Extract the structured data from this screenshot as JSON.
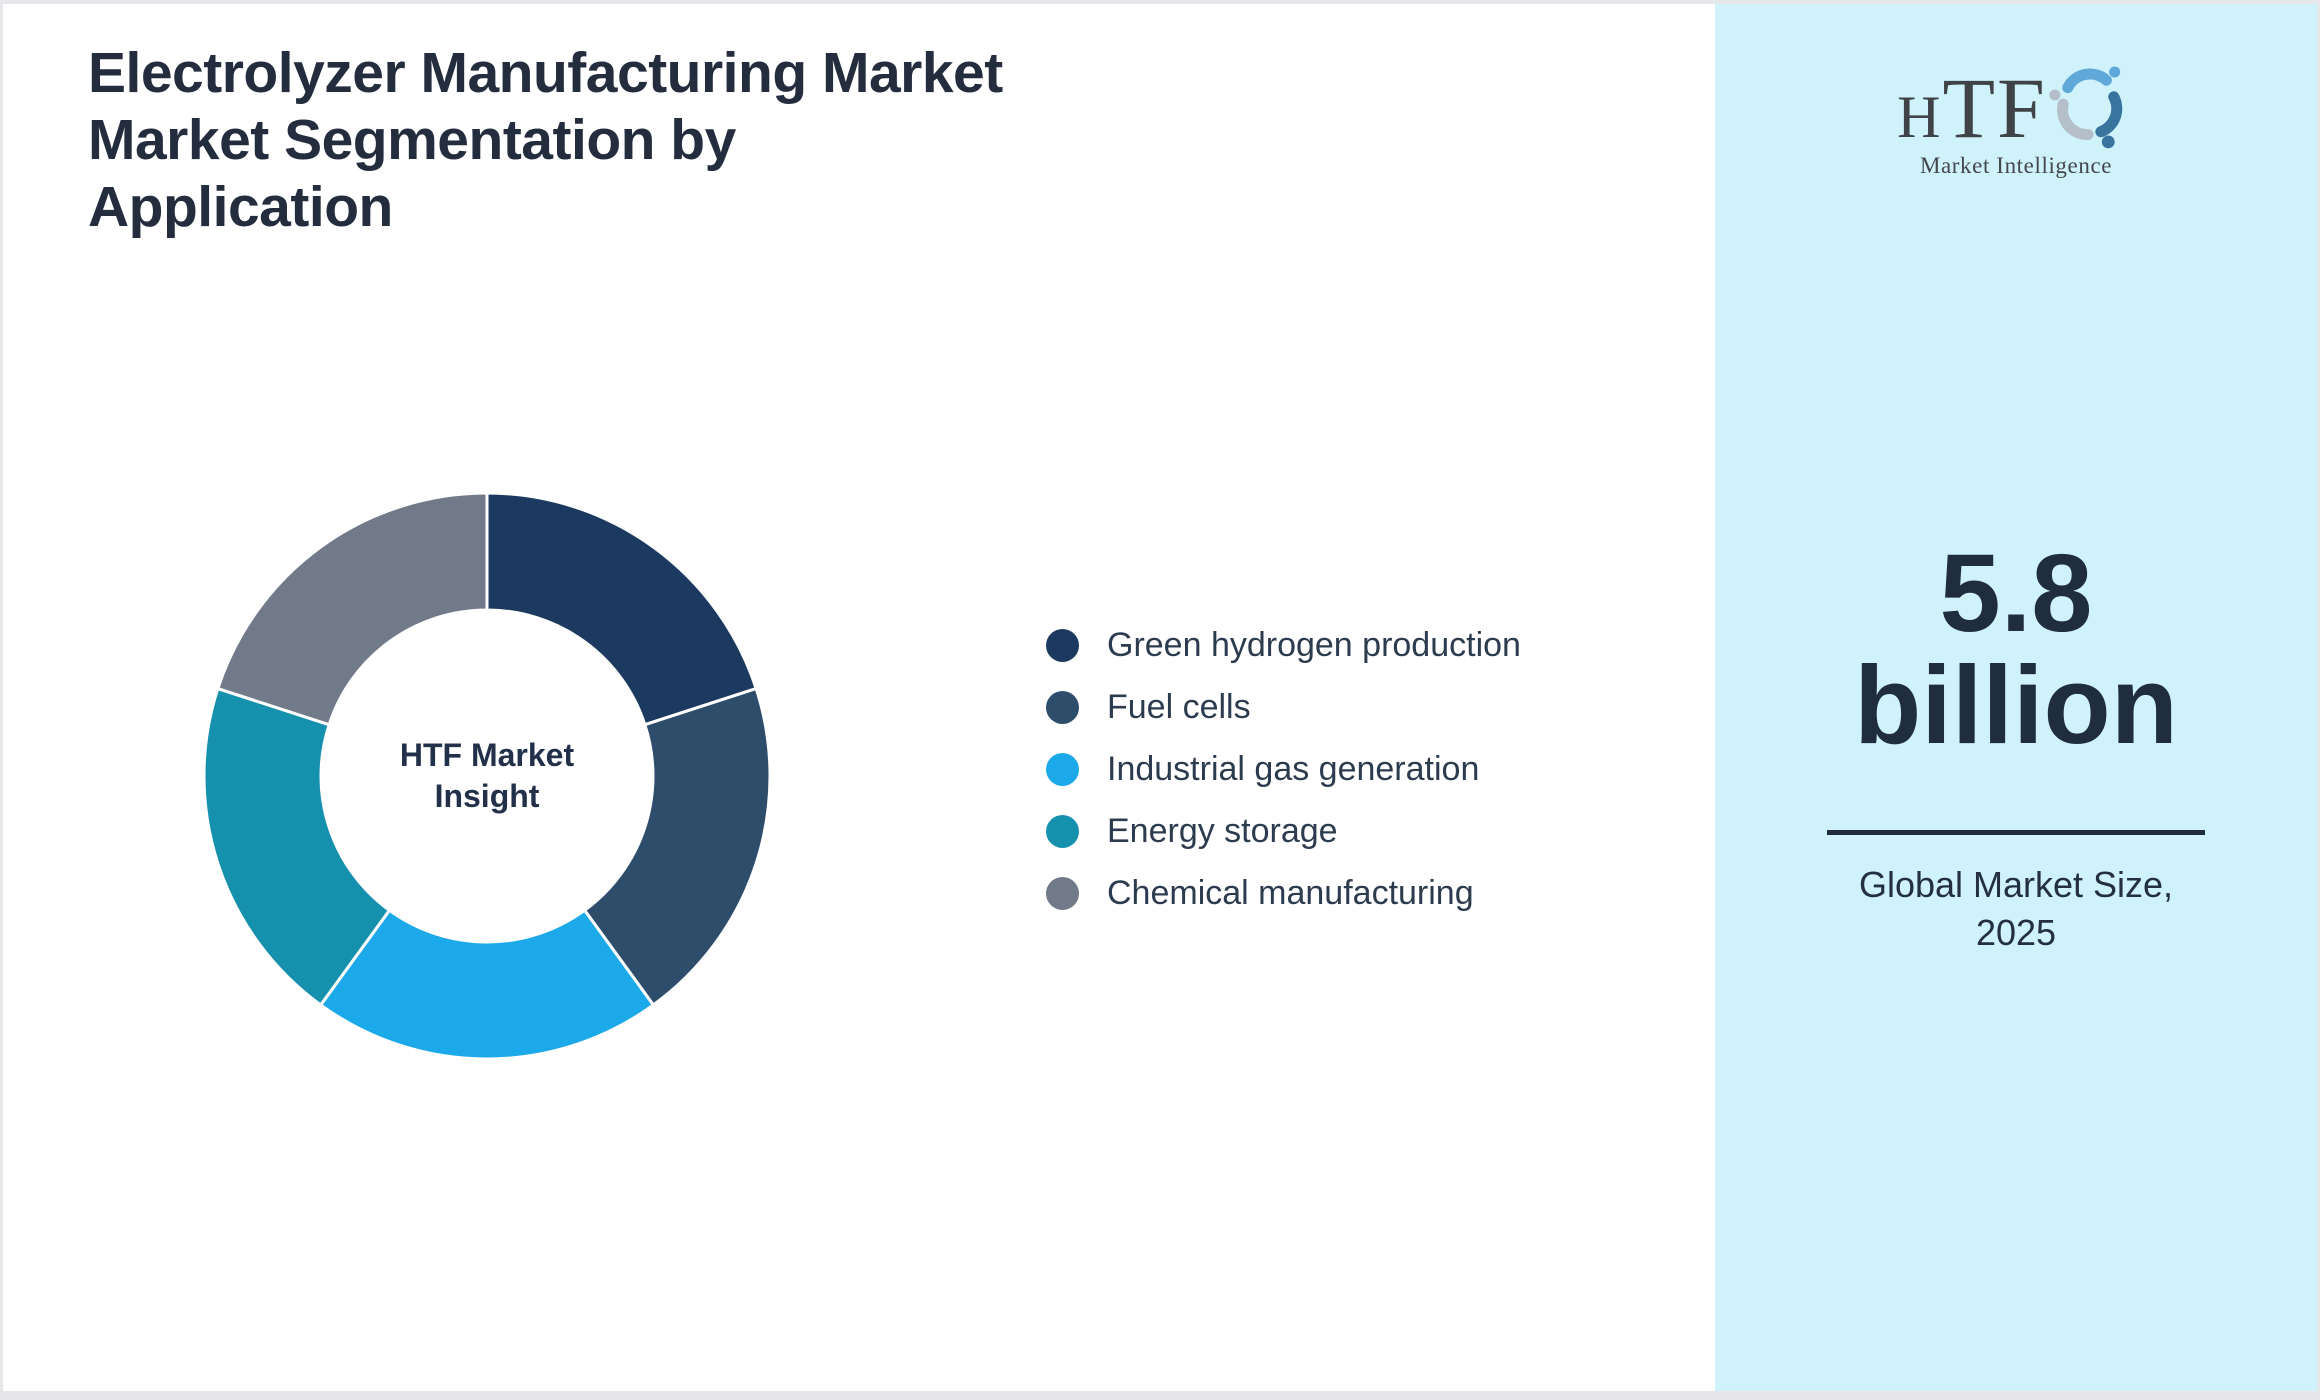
{
  "page": {
    "title_lines": [
      "Electrolyzer Manufacturing Market",
      "Market Segmentation by",
      "Application"
    ]
  },
  "chart_data": {
    "type": "pie",
    "subtype": "donut",
    "title": "Electrolyzer Manufacturing Market Market Segmentation by Application",
    "center_label_lines": [
      "HTF Market",
      "Insight"
    ],
    "categories": [
      "Green hydrogen production",
      "Fuel cells",
      "Industrial gas generation",
      "Energy storage",
      "Chemical manufacturing"
    ],
    "values": [
      20,
      20,
      20,
      20,
      20
    ],
    "values_unit": "percent (estimated; segments visually equal, ~72° each)",
    "colors": [
      "#1c3a60",
      "#2e4d6b",
      "#1ca9ea",
      "#1591ad",
      "#717a89"
    ],
    "start_angle_deg": 0,
    "direction": "clockwise",
    "inner_radius_ratio": 0.585,
    "gap_color": "#ffffff",
    "legend_position": "right",
    "data_labels": "none"
  },
  "sidebar": {
    "background": "#d0f3fb",
    "logo": {
      "brand": "HTF",
      "brand_h": "H",
      "brand_tf": "TF",
      "tagline": "Market Intelligence"
    },
    "stat_value_lines": [
      "5.8",
      "billion"
    ],
    "stat_caption_lines": [
      "Global Market Size,",
      "2025"
    ]
  },
  "colors": {
    "title_text": "#242d3e",
    "legend_text": "#2c3c4e",
    "stat_text": "#1f2d3f",
    "page_border": "#e6e7eb",
    "bottom_strip": "#e6e5e8",
    "logo_dolphin_light_blue": "#5fa8d8",
    "logo_dolphin_steel_blue": "#39749f",
    "logo_dolphin_gray": "#b4bfc9"
  }
}
